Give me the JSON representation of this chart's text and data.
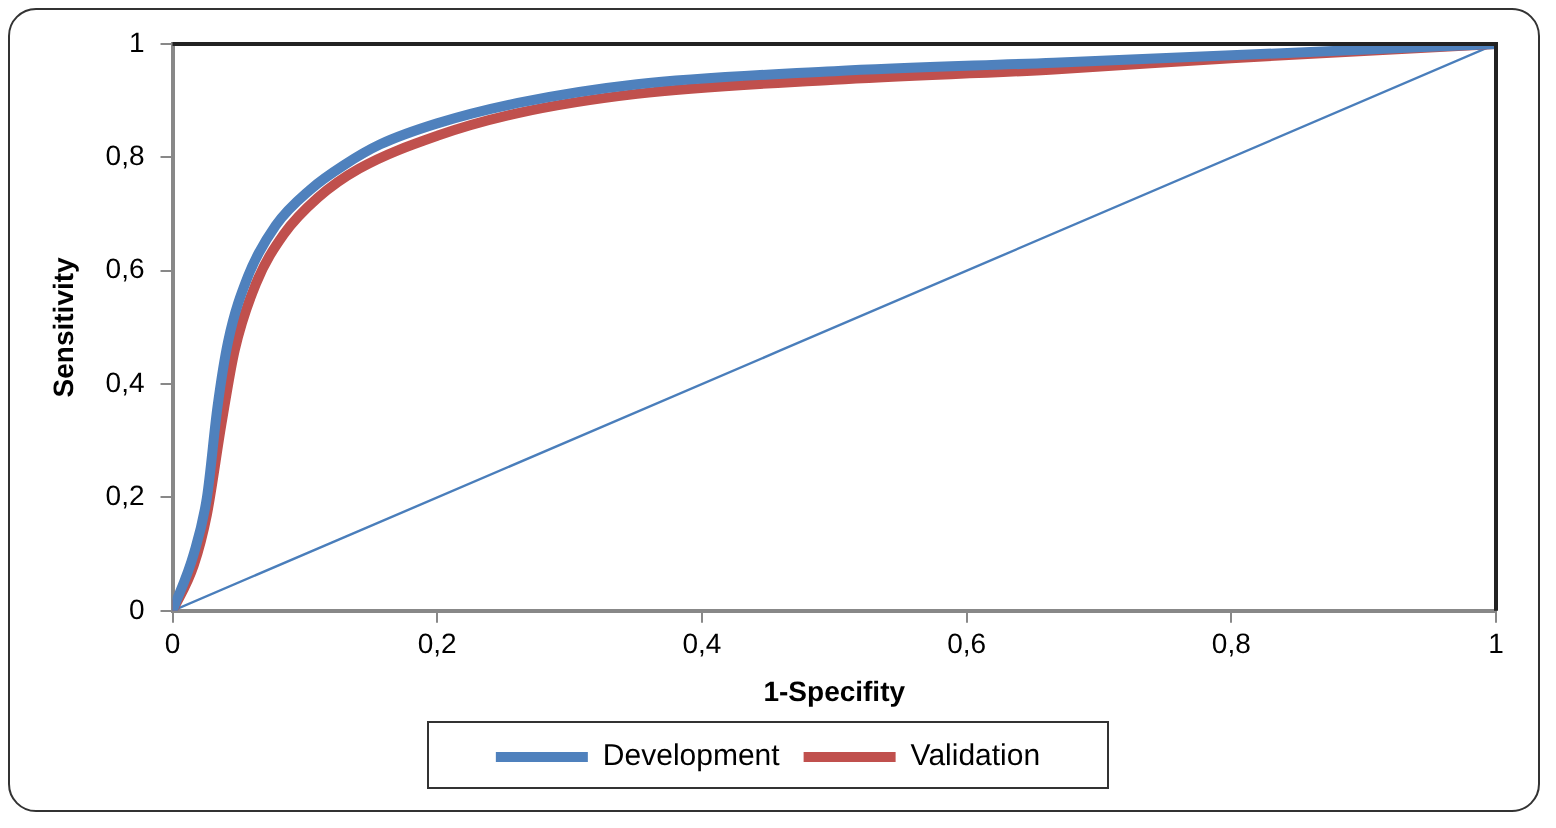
{
  "chart_data": {
    "type": "line",
    "xlabel": "1-Specifity",
    "ylabel": "Sensitivity",
    "xlim": [
      0,
      1
    ],
    "ylim": [
      0,
      1
    ],
    "xticks": [
      0,
      {
        "value": 0.2,
        "label": "0,2"
      },
      {
        "value": 0.4,
        "label": "0,4"
      },
      {
        "value": 0.6,
        "label": "0,6"
      },
      {
        "value": 0.8,
        "label": "0,8"
      },
      1
    ],
    "yticks": [
      0,
      {
        "value": 0.2,
        "label": "0,2"
      },
      {
        "value": 0.4,
        "label": "0,4"
      },
      {
        "value": 0.6,
        "label": "0,6"
      },
      {
        "value": 0.8,
        "label": "0,8"
      },
      1
    ],
    "grid": false,
    "legend": "bottom",
    "marker": "none",
    "line_style": "solid",
    "series": [
      {
        "name": "Development",
        "color": "#4f81bd",
        "x": [
          0,
          0.016,
          0.026,
          0.034,
          0.042,
          0.057,
          0.078,
          0.104,
          0.13,
          0.157,
          0.2,
          0.261,
          0.351,
          0.5,
          0.666,
          0.8,
          1
        ],
        "values": [
          0,
          0.1,
          0.2,
          0.36,
          0.475,
          0.59,
          0.68,
          0.743,
          0.787,
          0.823,
          0.86,
          0.896,
          0.929,
          0.952,
          0.967,
          0.98,
          1
        ]
      },
      {
        "name": "Validation",
        "color": "#c0504d",
        "x": [
          0,
          0.016,
          0.026,
          0.037,
          0.047,
          0.063,
          0.084,
          0.11,
          0.141,
          0.2,
          0.261,
          0.351,
          0.5,
          0.666,
          0.8,
          1
        ],
        "values": [
          0,
          0.08,
          0.17,
          0.33,
          0.46,
          0.577,
          0.664,
          0.729,
          0.78,
          0.838,
          0.878,
          0.912,
          0.937,
          0.955,
          0.975,
          1
        ]
      },
      {
        "color": "#4a7ebb",
        "x": [
          0,
          1
        ],
        "values": [
          0,
          1
        ]
      }
    ]
  }
}
